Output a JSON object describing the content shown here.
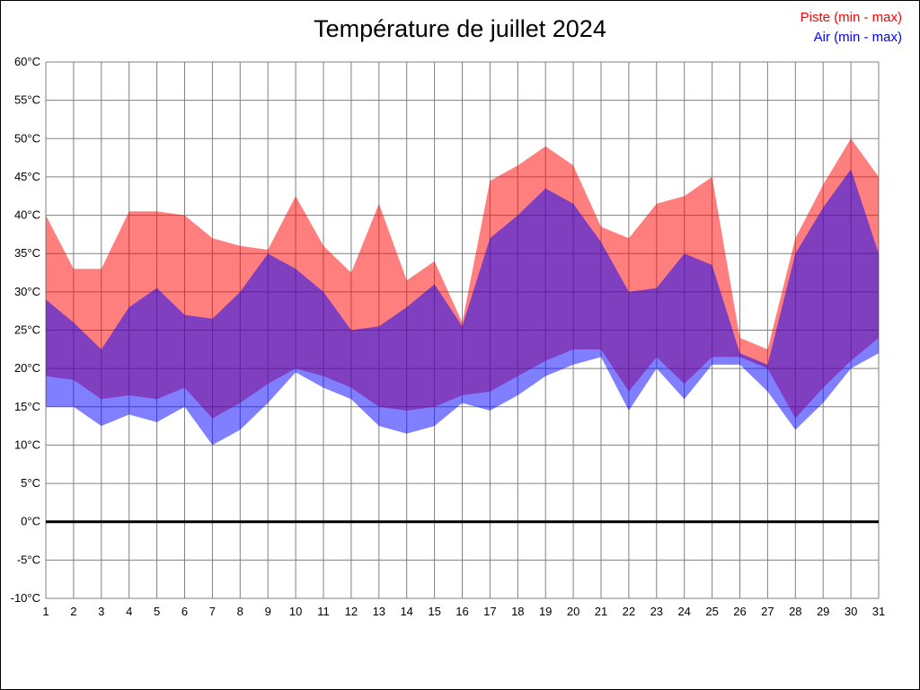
{
  "title": "Température de juillet 2024",
  "legend": {
    "piste": "Piste (min - max)",
    "air": "Air (min - max)"
  },
  "colors": {
    "piste": "#ff0000",
    "air": "#0000ff",
    "piste_fill": "rgba(255,0,0,0.5)",
    "air_fill": "rgba(0,0,255,0.5)",
    "grid": "#808080",
    "zero_line": "#000000",
    "text": "#000000"
  },
  "chart_data": {
    "type": "area",
    "title": "Température de juillet 2024",
    "xlabel": "",
    "ylabel": "",
    "ylabel_suffix": "°C",
    "ylim": [
      -10,
      60
    ],
    "ytick_step": 5,
    "grid": true,
    "zero_line": true,
    "legend_position": "top-right",
    "x": [
      1,
      2,
      3,
      4,
      5,
      6,
      7,
      8,
      9,
      10,
      11,
      12,
      13,
      14,
      15,
      16,
      17,
      18,
      19,
      20,
      21,
      22,
      23,
      24,
      25,
      26,
      27,
      28,
      29,
      30,
      31
    ],
    "series": [
      {
        "name": "Piste max",
        "values": [
          40,
          33,
          33,
          40.5,
          40.5,
          40,
          37,
          36,
          35.5,
          42.5,
          36,
          32.5,
          41.5,
          31.5,
          34,
          26,
          44.5,
          46.5,
          49,
          46.5,
          38.5,
          37,
          41.5,
          42.5,
          45,
          24,
          22.5,
          37,
          44,
          50,
          45
        ]
      },
      {
        "name": "Piste min",
        "values": [
          19,
          18.5,
          16,
          16.5,
          16,
          17.5,
          13.5,
          15.5,
          18,
          20,
          19,
          17.5,
          15,
          14.5,
          15,
          16.5,
          17,
          19,
          21,
          22.5,
          22.5,
          17,
          21.5,
          18,
          21.5,
          21.5,
          20,
          13.5,
          17.5,
          21,
          24
        ]
      },
      {
        "name": "Air max",
        "values": [
          29,
          26,
          22.5,
          28,
          30.5,
          27,
          26.5,
          30,
          35,
          33,
          30,
          25,
          25.5,
          28,
          31,
          25.5,
          37,
          40,
          43.5,
          41.5,
          36.5,
          30,
          30.5,
          35,
          33.5,
          22,
          20.5,
          35,
          41,
          46,
          35
        ]
      },
      {
        "name": "Air min",
        "values": [
          15,
          15,
          12.5,
          14,
          13,
          15,
          10,
          12,
          15.5,
          19.5,
          17.5,
          16,
          12.5,
          11.5,
          12.5,
          15.5,
          14.5,
          16.5,
          19,
          20.5,
          21.5,
          14.5,
          20,
          16,
          20.5,
          20.5,
          17,
          12,
          15.5,
          20,
          22
        ]
      }
    ]
  }
}
